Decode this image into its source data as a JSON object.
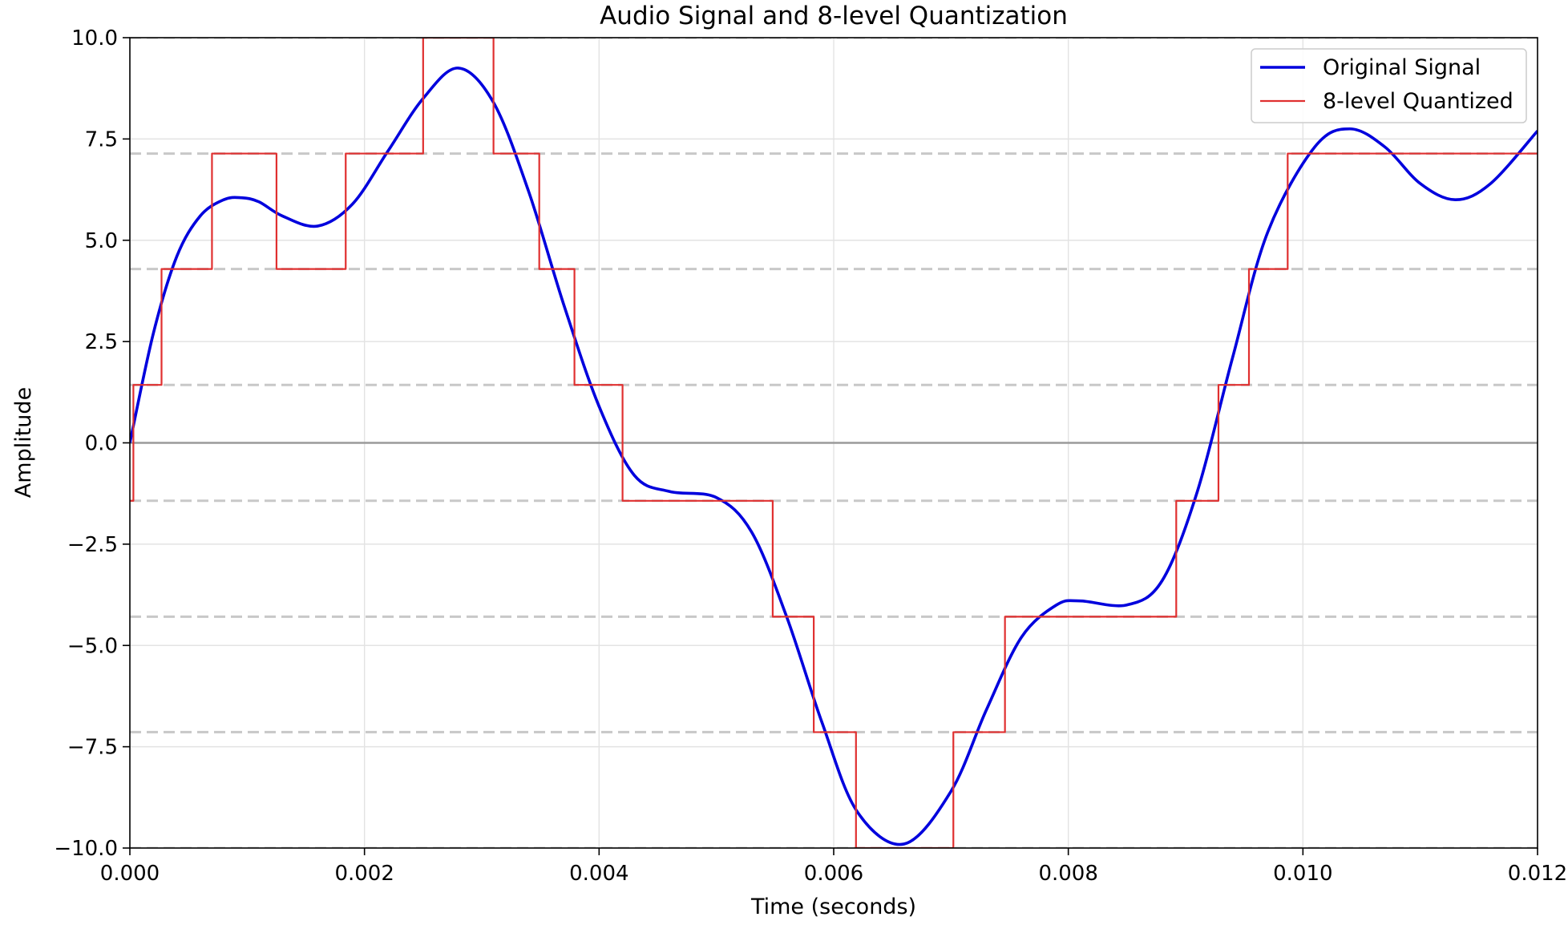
{
  "chart_data": {
    "type": "line",
    "title": "Audio Signal and 8-level Quantization",
    "xlabel": "Time (seconds)",
    "ylabel": "Amplitude",
    "xlim": [
      0,
      0.012
    ],
    "ylim": [
      -10,
      10
    ],
    "xticks": [
      0,
      0.002,
      0.004,
      0.006,
      0.008,
      0.01,
      0.012
    ],
    "xtick_labels": [
      "0.000",
      "0.002",
      "0.004",
      "0.006",
      "0.008",
      "0.010",
      "0.012"
    ],
    "yticks": [
      -10,
      -7.5,
      -5,
      -2.5,
      0,
      2.5,
      5,
      7.5,
      10
    ],
    "ytick_labels": [
      "−10.0",
      "−7.5",
      "−5.0",
      "−2.5",
      "0.0",
      "2.5",
      "5.0",
      "7.5",
      "10.0"
    ],
    "grid": true,
    "legend_position": "top-right",
    "quantization_levels": [
      -10,
      -7.14,
      -4.29,
      -1.43,
      1.43,
      4.29,
      7.14,
      10
    ],
    "colors": {
      "original": "#0000dd",
      "quantized": "#e03030",
      "level_lines": "#c8c8c8",
      "zero_line": "#9a9a9a",
      "grid": "#e3e3e3"
    },
    "series": [
      {
        "name": "Original Signal",
        "kind": "smooth",
        "x": [
          0,
          0.0002,
          0.0004,
          0.0006,
          0.0008,
          0.00095,
          0.0011,
          0.0013,
          0.0016,
          0.0019,
          0.0022,
          0.0025,
          0.0028,
          0.0031,
          0.0034,
          0.0037,
          0.004,
          0.0043,
          0.0046,
          0.005,
          0.0053,
          0.0056,
          0.0059,
          0.0062,
          0.0066,
          0.007,
          0.0073,
          0.0076,
          0.0079,
          0.0081,
          0.0085,
          0.0088,
          0.0091,
          0.0094,
          0.0097,
          0.0101,
          0.0104,
          0.0107,
          0.011,
          0.0113,
          0.0116,
          0.012
        ],
        "values": [
          0,
          2.7,
          4.6,
          5.6,
          6.0,
          6.05,
          5.95,
          5.6,
          5.35,
          5.9,
          7.2,
          8.5,
          9.25,
          8.4,
          6.2,
          3.4,
          0.9,
          -0.8,
          -1.2,
          -1.35,
          -2.2,
          -4.3,
          -6.9,
          -9.1,
          -9.9,
          -8.6,
          -6.6,
          -4.8,
          -4.0,
          -3.9,
          -4.0,
          -3.4,
          -1.2,
          2.1,
          5.2,
          7.3,
          7.75,
          7.3,
          6.4,
          6.0,
          6.4,
          7.7
        ]
      },
      {
        "name": "8-level Quantized",
        "kind": "step",
        "x": [
          0,
          3e-05,
          0.00027,
          0.0007,
          0.00125,
          0.00184,
          0.0025,
          0.0031,
          0.00349,
          0.00379,
          0.0042,
          0.00548,
          0.00583,
          0.00619,
          0.00702,
          0.00746,
          0.00892,
          0.00928,
          0.00954,
          0.00987,
          0.012
        ],
        "values": [
          -1.43,
          1.43,
          4.29,
          7.14,
          4.29,
          7.14,
          10,
          7.14,
          4.29,
          1.43,
          -1.43,
          -4.29,
          -7.14,
          -10,
          -7.14,
          -4.29,
          -1.43,
          1.43,
          4.29,
          7.14,
          7.14
        ]
      }
    ]
  }
}
